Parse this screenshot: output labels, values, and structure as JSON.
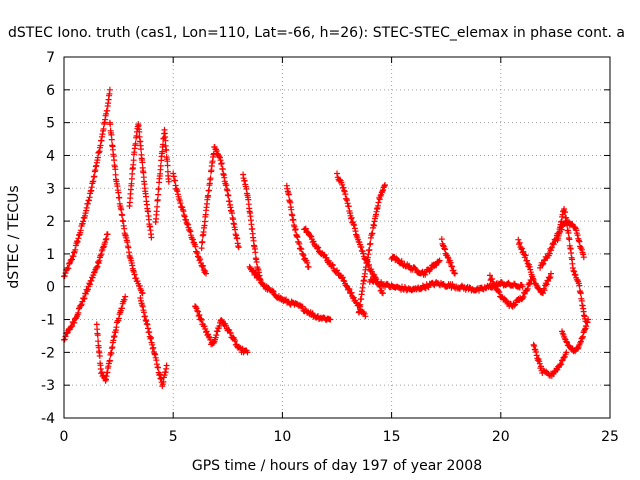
{
  "chart_data": {
    "type": "scatter",
    "title": "dSTEC Iono. truth (cas1, Lon=110, Lat=-66, h=26): STEC-STEC_elemax in phase cont. a",
    "xlabel": "GPS time / hours of day 197 of year 2008",
    "ylabel": "dSTEC  / TECUs",
    "xlim": [
      0,
      25
    ],
    "ylim": [
      -4,
      7
    ],
    "xticks": [
      0,
      5,
      10,
      15,
      20,
      25
    ],
    "yticks": [
      -4,
      -3,
      -2,
      -1,
      0,
      1,
      2,
      3,
      4,
      5,
      6,
      7
    ],
    "grid": true,
    "marker": "+",
    "color": "#ff0000",
    "series": [
      {
        "arcs": [
          {
            "t": [
              0.0,
              0.4,
              0.8,
              1.2,
              1.6,
              2.0,
              2.1
            ],
            "y": [
              0.3,
              0.9,
              1.8,
              2.8,
              4.1,
              5.5,
              6.0
            ]
          },
          {
            "t": [
              2.1,
              2.4,
              2.8,
              3.2,
              3.6
            ],
            "y": [
              5.0,
              3.2,
              1.6,
              0.4,
              -0.2
            ]
          },
          {
            "t": [
              0.0,
              0.5,
              1.0,
              1.5,
              2.0
            ],
            "y": [
              -1.6,
              -1.0,
              -0.2,
              0.6,
              1.6
            ]
          },
          {
            "t": [
              1.5,
              1.7,
              1.9,
              2.1,
              2.4,
              2.8
            ],
            "y": [
              -1.2,
              -2.6,
              -2.9,
              -2.2,
              -1.2,
              -0.3
            ]
          },
          {
            "t": [
              3.0,
              3.2,
              3.4,
              3.7,
              4.0
            ],
            "y": [
              2.5,
              4.0,
              5.0,
              3.0,
              1.5
            ]
          },
          {
            "t": [
              3.5,
              3.9,
              4.2,
              4.5,
              4.7
            ],
            "y": [
              -0.4,
              -1.4,
              -2.2,
              -3.0,
              -2.4
            ]
          },
          {
            "t": [
              4.2,
              4.4,
              4.6,
              4.8
            ],
            "y": [
              2.0,
              3.5,
              4.8,
              3.2
            ]
          },
          {
            "t": [
              5.0,
              5.3,
              5.7,
              6.1,
              6.5
            ],
            "y": [
              3.4,
              2.6,
              1.8,
              1.0,
              0.4
            ]
          },
          {
            "t": [
              6.3,
              6.6,
              6.9,
              7.2,
              7.6,
              8.0
            ],
            "y": [
              1.2,
              2.8,
              4.3,
              3.8,
              2.5,
              1.2
            ]
          },
          {
            "t": [
              6.0,
              6.4,
              6.8,
              7.2,
              7.6,
              8.0,
              8.4
            ],
            "y": [
              -0.6,
              -1.2,
              -1.8,
              -1.0,
              -1.4,
              -1.9,
              -2.0
            ]
          },
          {
            "t": [
              8.2,
              8.4,
              8.6,
              8.8,
              9.0
            ],
            "y": [
              3.4,
              2.8,
              1.8,
              0.8,
              0.2
            ]
          },
          {
            "t": [
              8.5,
              9.2,
              10.0,
              10.8,
              11.5,
              12.2
            ],
            "y": [
              0.6,
              0.0,
              -0.4,
              -0.6,
              -0.9,
              -1.0
            ]
          },
          {
            "t": [
              10.2,
              10.5,
              10.8,
              11.2
            ],
            "y": [
              3.1,
              2.0,
              1.2,
              0.6
            ]
          },
          {
            "t": [
              11.0,
              11.6,
              12.2,
              12.8,
              13.3,
              13.8
            ],
            "y": [
              1.8,
              1.2,
              0.7,
              0.2,
              -0.4,
              -0.9
            ]
          },
          {
            "t": [
              12.5,
              12.8,
              13.2,
              13.7,
              14.2,
              14.6
            ],
            "y": [
              3.4,
              3.0,
              2.0,
              1.0,
              0.3,
              -0.2
            ]
          },
          {
            "t": [
              13.5,
              13.8,
              14.1,
              14.4,
              14.7
            ],
            "y": [
              -0.8,
              0.5,
              1.6,
              2.6,
              3.1
            ]
          },
          {
            "t": [
              14.0,
              15.0,
              16.0,
              17.0,
              18.0,
              19.0,
              20.0,
              21.0
            ],
            "y": [
              0.2,
              0.0,
              -0.1,
              0.1,
              0.0,
              -0.1,
              0.1,
              0.0
            ]
          },
          {
            "t": [
              15.0,
              15.8,
              16.5,
              17.2
            ],
            "y": [
              0.9,
              0.6,
              0.4,
              0.8
            ]
          },
          {
            "t": [
              17.3,
              17.5,
              17.7,
              17.9
            ],
            "y": [
              1.4,
              1.0,
              0.7,
              0.4
            ]
          },
          {
            "t": [
              19.5,
              20.0,
              20.5,
              21.0,
              21.4
            ],
            "y": [
              0.3,
              -0.3,
              -0.6,
              -0.3,
              0.2
            ]
          },
          {
            "t": [
              20.8,
              21.2,
              21.5,
              21.9,
              22.3
            ],
            "y": [
              1.4,
              0.8,
              0.2,
              -0.2,
              0.4
            ]
          },
          {
            "t": [
              21.5,
              21.9,
              22.3,
              22.7,
              23.0
            ],
            "y": [
              -1.8,
              -2.6,
              -2.7,
              -2.4,
              -2.0
            ]
          },
          {
            "t": [
              21.8,
              22.2,
              22.6,
              23.0,
              23.4,
              23.8
            ],
            "y": [
              0.6,
              1.0,
              1.6,
              2.0,
              1.8,
              0.9
            ]
          },
          {
            "t": [
              22.6,
              22.9,
              23.1,
              23.3,
              23.6,
              23.9
            ],
            "y": [
              1.4,
              2.4,
              1.6,
              0.6,
              0.0,
              -1.2
            ]
          },
          {
            "t": [
              22.8,
              23.1,
              23.4,
              23.7,
              24.0
            ],
            "y": [
              -1.4,
              -1.8,
              -2.0,
              -1.6,
              -1.0
            ]
          }
        ]
      }
    ]
  }
}
